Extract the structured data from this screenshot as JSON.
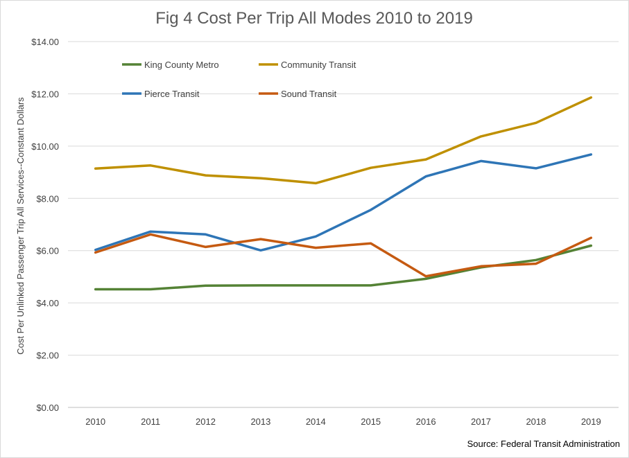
{
  "chart_data": {
    "type": "line",
    "title": "Fig 4 Cost Per Trip All Modes 2010 to 2019",
    "xlabel": "",
    "ylabel": "Cost Per Unlinked Passenger Trip All Services--Constant Dollars",
    "x": [
      "2010",
      "2011",
      "2012",
      "2013",
      "2014",
      "2015",
      "2016",
      "2017",
      "2018",
      "2019"
    ],
    "ylim": [
      0,
      14
    ],
    "ytick_values": [
      0,
      2,
      4,
      6,
      8,
      10,
      12,
      14
    ],
    "ytick_labels": [
      "$0.00",
      "$2.00",
      "$4.00",
      "$6.00",
      "$8.00",
      "$10.00",
      "$12.00",
      "$14.00"
    ],
    "grid": "horizontal",
    "legend_position": "top-left, inside plot",
    "series": [
      {
        "name": "King County Metro",
        "color": "#548235",
        "values": [
          4.52,
          4.52,
          4.66,
          4.67,
          4.67,
          4.67,
          4.92,
          5.36,
          5.64,
          6.19
        ]
      },
      {
        "name": "Community Transit",
        "color": "#BF9000",
        "values": [
          9.14,
          9.26,
          8.88,
          8.77,
          8.58,
          9.17,
          9.49,
          10.37,
          10.89,
          11.86
        ]
      },
      {
        "name": "Pierce Transit",
        "color": "#2E75B6",
        "values": [
          6.03,
          6.73,
          6.62,
          6.01,
          6.54,
          7.56,
          8.84,
          9.43,
          9.15,
          9.68
        ]
      },
      {
        "name": "Sound Transit",
        "color": "#C55A11",
        "values": [
          5.93,
          6.62,
          6.14,
          6.44,
          6.11,
          6.28,
          5.02,
          5.4,
          5.5,
          6.49
        ]
      }
    ],
    "annotations": [
      "Source: Federal Transit Administration"
    ]
  }
}
